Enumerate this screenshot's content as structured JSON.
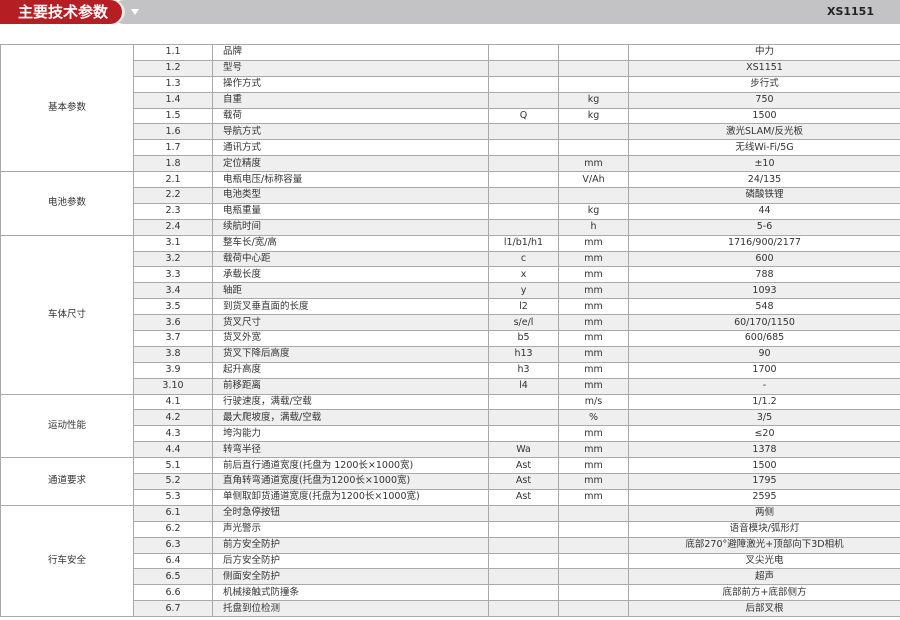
{
  "header": {
    "title": "主要技术参数",
    "model": "XS1151"
  },
  "groups": [
    {
      "name": "基本参数",
      "rows": [
        [
          "1.1",
          "品牌",
          "",
          "",
          "中力"
        ],
        [
          "1.2",
          "型号",
          "",
          "",
          "XS1151"
        ],
        [
          "1.3",
          "操作方式",
          "",
          "",
          "步行式"
        ],
        [
          "1.4",
          "自重",
          "",
          "kg",
          "750"
        ],
        [
          "1.5",
          "载荷",
          "Q",
          "kg",
          "1500"
        ],
        [
          "1.6",
          "导航方式",
          "",
          "",
          "激光SLAM/反光板"
        ],
        [
          "1.7",
          "通讯方式",
          "",
          "",
          "无线Wi-Fi/5G"
        ],
        [
          "1.8",
          "定位精度",
          "",
          "mm",
          "±10"
        ]
      ]
    },
    {
      "name": "电池参数",
      "rows": [
        [
          "2.1",
          "电瓶电压/标称容量",
          "",
          "V/Ah",
          "24/135"
        ],
        [
          "2.2",
          "电池类型",
          "",
          "",
          "磷酸铁锂"
        ],
        [
          "2.3",
          "电瓶重量",
          "",
          "kg",
          "44"
        ],
        [
          "2.4",
          "续航时间",
          "",
          "h",
          "5-6"
        ]
      ]
    },
    {
      "name": "车体尺寸",
      "rows": [
        [
          "3.1",
          "整车长/宽/高",
          "l1/b1/h1",
          "mm",
          "1716/900/2177"
        ],
        [
          "3.2",
          "载荷中心距",
          "c",
          "mm",
          "600"
        ],
        [
          "3.3",
          "承载长度",
          "x",
          "mm",
          "788"
        ],
        [
          "3.4",
          "轴距",
          "y",
          "mm",
          "1093"
        ],
        [
          "3.5",
          "到货叉垂直面的长度",
          "l2",
          "mm",
          "548"
        ],
        [
          "3.6",
          "货叉尺寸",
          "s/e/l",
          "mm",
          "60/170/1150"
        ],
        [
          "3.7",
          "货叉外宽",
          "b5",
          "mm",
          "600/685"
        ],
        [
          "3.8",
          "货叉下降后高度",
          "h13",
          "mm",
          "90"
        ],
        [
          "3.9",
          "起升高度",
          "h3",
          "mm",
          "1700"
        ],
        [
          "3.10",
          "前移距离",
          "l4",
          "mm",
          "-"
        ]
      ]
    },
    {
      "name": "运动性能",
      "rows": [
        [
          "4.1",
          "行驶速度，满载/空载",
          "",
          "m/s",
          "1/1.2"
        ],
        [
          "4.2",
          "最大爬坡度，满载/空载",
          "",
          "%",
          "3/5"
        ],
        [
          "4.3",
          "垮沟能力",
          "",
          "mm",
          "≤20"
        ],
        [
          "4.4",
          "转弯半径",
          "Wa",
          "mm",
          "1378"
        ]
      ]
    },
    {
      "name": "通道要求",
      "rows": [
        [
          "5.1",
          "前后直行通道宽度(托盘为 1200长×1000宽)",
          "Ast",
          "mm",
          "1500"
        ],
        [
          "5.2",
          "直角转弯通道宽度(托盘为1200长×1000宽)",
          "Ast",
          "mm",
          "1795"
        ],
        [
          "5.3",
          "单侧取卸货通道宽度(托盘为1200长×1000宽)",
          "Ast",
          "mm",
          "2595"
        ]
      ]
    },
    {
      "name": "行车安全",
      "rows": [
        [
          "6.1",
          "全时急停按钮",
          "",
          "",
          "两侧"
        ],
        [
          "6.2",
          "声光警示",
          "",
          "",
          "语音模块/弧形灯"
        ],
        [
          "6.3",
          "前方安全防护",
          "",
          "",
          "底部270°避障激光+顶部向下3D相机"
        ],
        [
          "6.4",
          "后方安全防护",
          "",
          "",
          "叉尖光电"
        ],
        [
          "6.5",
          "侧面安全防护",
          "",
          "",
          "超声"
        ],
        [
          "6.6",
          "机械接触式防撞条",
          "",
          "",
          "底部前方+底部侧方"
        ],
        [
          "6.7",
          "托盘到位检测",
          "",
          "",
          "后部叉根"
        ]
      ]
    }
  ]
}
